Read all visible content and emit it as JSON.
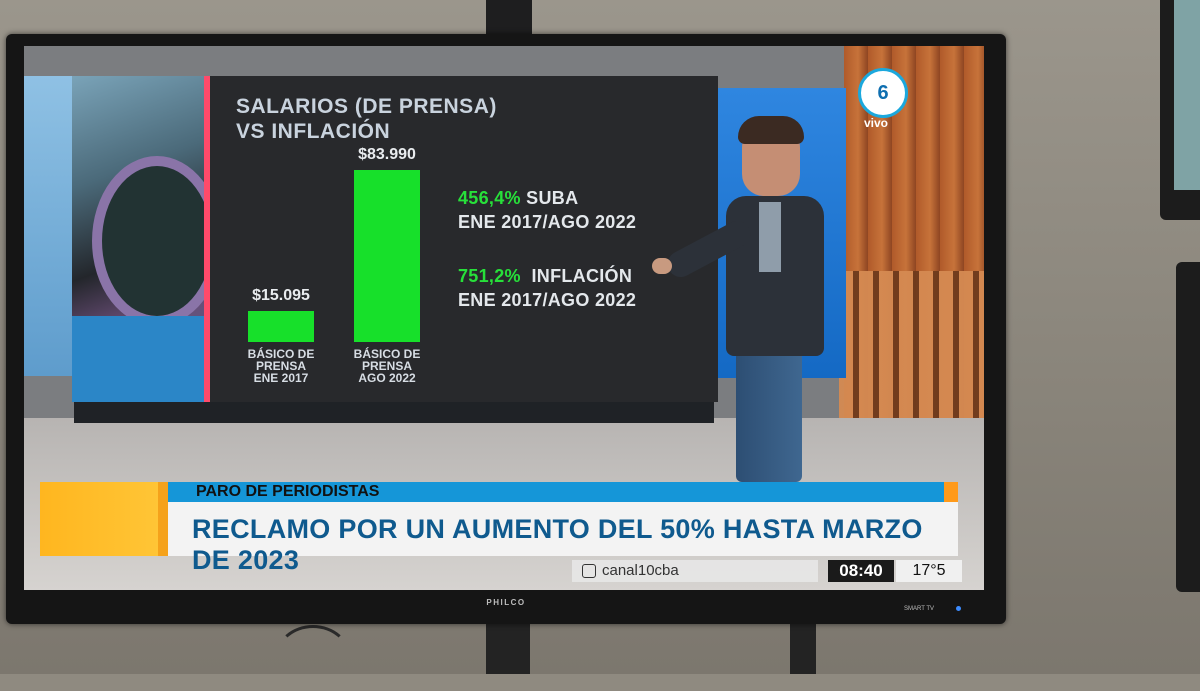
{
  "tv": {
    "brand": "PHILCO",
    "model_label": "SMART TV"
  },
  "channel": {
    "logo_text": "vivo",
    "logo_mark": "6"
  },
  "graphic": {
    "title_line1": "SALARIOS (DE PRENSA)",
    "title_line2": "VS INFLACIÓN",
    "stat1_pct": "456,4%",
    "stat1_word": "SUBA",
    "stat1_period": "ENE 2017/AGO 2022",
    "stat2_pct": "751,2%",
    "stat2_word": "INFLACIÓN",
    "stat2_period": "ENE 2017/AGO 2022"
  },
  "chart_data": {
    "type": "bar",
    "categories": [
      "BÁSICO DE PRENSA ENE 2017",
      "BÁSICO DE PRENSA AGO 2022"
    ],
    "category_lines": [
      [
        "BÁSICO DE",
        "PRENSA",
        "ENE 2017"
      ],
      [
        "BÁSICO DE",
        "PRENSA",
        "AGO 2022"
      ]
    ],
    "values": [
      15095,
      83990
    ],
    "value_labels": [
      "$15.095",
      "$83.990"
    ],
    "title": "SALARIOS (DE PRENSA) VS INFLACIÓN",
    "color": "#17e02a"
  },
  "lower_third": {
    "kicker": "PARO DE PERIODISTAS",
    "headline": "RECLAMO POR UN AUMENTO DEL 50% HASTA MARZO DE 2023",
    "social_handle": "canal10cba",
    "time": "08:40",
    "temperature": "17°5"
  }
}
